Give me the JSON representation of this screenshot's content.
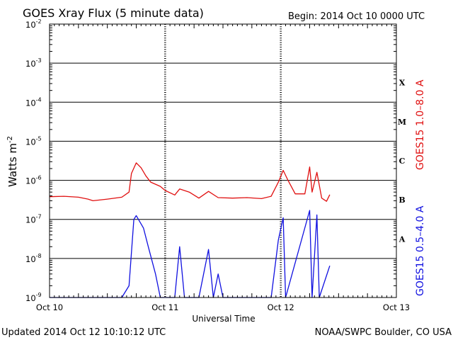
{
  "header": {
    "title": "GOES Xray Flux (5 minute data)",
    "begin": "Begin:  2014 Oct 10 0000 UTC"
  },
  "footer": {
    "updated": "Updated 2014 Oct 12 10:10:12 UTC",
    "credit": "NOAA/SWPC Boulder, CO USA"
  },
  "chart_data": {
    "type": "line",
    "xlabel": "Universal Time",
    "ylabel": "Watts m",
    "ylabel_superscript": "-2",
    "y_scale": "log",
    "ylim": [
      1e-09,
      0.01
    ],
    "xlim": [
      "2014-10-10T00:00Z",
      "2014-10-13T00:00Z"
    ],
    "x_ticks": [
      "Oct 10",
      "Oct 11",
      "Oct 12",
      "Oct 13"
    ],
    "y_ticks": [
      {
        "base": "10",
        "exp": "-2"
      },
      {
        "base": "10",
        "exp": "-3"
      },
      {
        "base": "10",
        "exp": "-4"
      },
      {
        "base": "10",
        "exp": "-5"
      },
      {
        "base": "10",
        "exp": "-6"
      },
      {
        "base": "10",
        "exp": "-7"
      },
      {
        "base": "10",
        "exp": "-8"
      },
      {
        "base": "10",
        "exp": "-9"
      }
    ],
    "flare_classes": [
      "X",
      "M",
      "C",
      "B",
      "A"
    ],
    "grid": true,
    "series": [
      {
        "name": "GOES15 1.0–8.0 A",
        "color": "#e01010",
        "points": [
          [
            "2014-10-10T00:00Z",
            3.8e-07
          ],
          [
            "2014-10-10T03:00Z",
            3.9e-07
          ],
          [
            "2014-10-10T06:00Z",
            3.7e-07
          ],
          [
            "2014-10-10T08:00Z",
            3.3e-07
          ],
          [
            "2014-10-10T09:00Z",
            3e-07
          ],
          [
            "2014-10-10T12:00Z",
            3.3e-07
          ],
          [
            "2014-10-10T15:00Z",
            3.7e-07
          ],
          [
            "2014-10-10T16:30Z",
            5e-07
          ],
          [
            "2014-10-10T17:00Z",
            1.5e-06
          ],
          [
            "2014-10-10T18:00Z",
            2.8e-06
          ],
          [
            "2014-10-10T19:00Z",
            2.1e-06
          ],
          [
            "2014-10-10T20:00Z",
            1.3e-06
          ],
          [
            "2014-10-10T21:00Z",
            9e-07
          ],
          [
            "2014-10-10T23:00Z",
            7e-07
          ],
          [
            "2014-10-11T00:00Z",
            5.5e-07
          ],
          [
            "2014-10-11T02:00Z",
            4.2e-07
          ],
          [
            "2014-10-11T03:00Z",
            6e-07
          ],
          [
            "2014-10-11T05:00Z",
            5e-07
          ],
          [
            "2014-10-11T07:00Z",
            3.5e-07
          ],
          [
            "2014-10-11T09:00Z",
            5.2e-07
          ],
          [
            "2014-10-11T11:00Z",
            3.6e-07
          ],
          [
            "2014-10-11T14:00Z",
            3.5e-07
          ],
          [
            "2014-10-11T17:00Z",
            3.6e-07
          ],
          [
            "2014-10-11T20:00Z",
            3.4e-07
          ],
          [
            "2014-10-11T22:00Z",
            3.9e-07
          ],
          [
            "2014-10-11T23:30Z",
            9e-07
          ],
          [
            "2014-10-12T00:30Z",
            1.8e-06
          ],
          [
            "2014-10-12T01:30Z",
            1e-06
          ],
          [
            "2014-10-12T03:00Z",
            4.5e-07
          ],
          [
            "2014-10-12T05:00Z",
            4.5e-07
          ],
          [
            "2014-10-12T06:00Z",
            2.2e-06
          ],
          [
            "2014-10-12T06:30Z",
            5e-07
          ],
          [
            "2014-10-12T07:30Z",
            1.6e-06
          ],
          [
            "2014-10-12T08:30Z",
            3.5e-07
          ],
          [
            "2014-10-12T09:30Z",
            2.9e-07
          ],
          [
            "2014-10-12T10:10Z",
            4.3e-07
          ]
        ]
      },
      {
        "name": "GOES15 0.5–4.0 A",
        "color": "#1010e0",
        "points": [
          [
            "2014-10-10T00:00Z",
            1e-09
          ],
          [
            "2014-10-10T15:00Z",
            1e-09
          ],
          [
            "2014-10-10T16:30Z",
            2e-09
          ],
          [
            "2014-10-10T17:30Z",
            1e-07
          ],
          [
            "2014-10-10T18:00Z",
            1.25e-07
          ],
          [
            "2014-10-10T19:30Z",
            6e-08
          ],
          [
            "2014-10-10T20:30Z",
            2e-08
          ],
          [
            "2014-10-10T22:00Z",
            4e-09
          ],
          [
            "2014-10-10T23:00Z",
            1e-09
          ],
          [
            "2014-10-11T02:00Z",
            1e-09
          ],
          [
            "2014-10-11T03:00Z",
            2e-08
          ],
          [
            "2014-10-11T04:00Z",
            1e-09
          ],
          [
            "2014-10-11T07:00Z",
            1e-09
          ],
          [
            "2014-10-11T09:00Z",
            1.7e-08
          ],
          [
            "2014-10-11T10:00Z",
            1e-09
          ],
          [
            "2014-10-11T11:00Z",
            4e-09
          ],
          [
            "2014-10-11T12:00Z",
            1e-09
          ],
          [
            "2014-10-11T14:00Z",
            1e-09
          ],
          [
            "2014-10-11T22:00Z",
            1e-09
          ],
          [
            "2014-10-11T23:30Z",
            3e-08
          ],
          [
            "2014-10-12T00:30Z",
            1.1e-07
          ],
          [
            "2014-10-12T01:00Z",
            1e-09
          ],
          [
            "2014-10-12T06:00Z",
            1.7e-07
          ],
          [
            "2014-10-12T06:30Z",
            1e-09
          ],
          [
            "2014-10-12T07:30Z",
            1.3e-07
          ],
          [
            "2014-10-12T08:00Z",
            1e-09
          ],
          [
            "2014-10-12T10:10Z",
            6.5e-09
          ]
        ]
      }
    ]
  }
}
